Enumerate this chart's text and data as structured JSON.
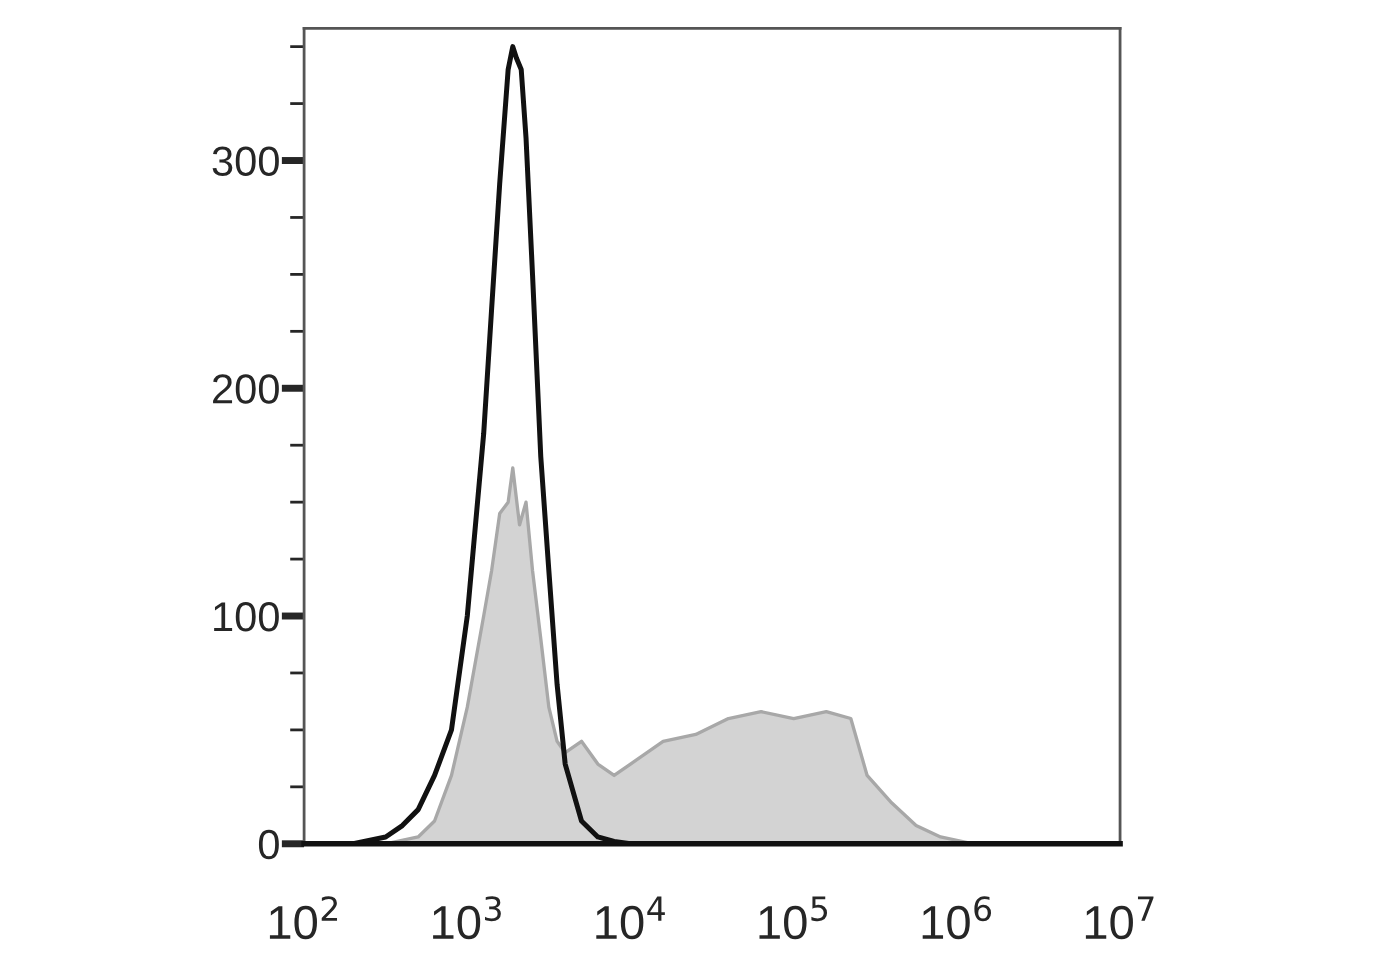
{
  "chart_data": {
    "type": "area",
    "xlim": [
      100,
      10000000
    ],
    "log": "x",
    "xticks": [
      {
        "value": 100,
        "label": "10$^{2}$"
      },
      {
        "value": 1000,
        "label": "10$^{3}$"
      },
      {
        "value": 10000,
        "label": "10$^{4}$"
      },
      {
        "value": 100000,
        "label": "10$^{5}$"
      },
      {
        "value": 1000000,
        "label": "10$^{6}$"
      },
      {
        "value": 10000000,
        "label": "10$^{7}$"
      }
    ],
    "ylim": [
      0,
      358
    ],
    "yticks": [
      0,
      {
        "value": 25,
        "label": null
      },
      {
        "value": 50,
        "label": null
      },
      {
        "value": 75,
        "label": null
      },
      100,
      {
        "value": 125,
        "label": null
      },
      {
        "value": 150,
        "label": null
      },
      {
        "value": 175,
        "label": null
      },
      200,
      {
        "value": 225,
        "label": null
      },
      {
        "value": 250,
        "label": null
      },
      {
        "value": 275,
        "label": null
      },
      300,
      {
        "value": 325,
        "label": null
      },
      {
        "value": 350,
        "label": null
      }
    ],
    "grid": false,
    "legend": false,
    "series": [
      {
        "color": "#d3d3d3",
        "x": [
          100,
          316,
          500,
          630,
          800,
          1000,
          1260,
          1410,
          1580,
          1780,
          1900,
          2090,
          2290,
          2510,
          2820,
          3160,
          3550,
          3980,
          5010,
          6310,
          7940,
          10000,
          15850,
          25120,
          39810,
          63100,
          100000,
          158500,
          223900,
          281800,
          398100,
          562300,
          794300,
          1259000,
          10000000
        ],
        "values": [
          0,
          0,
          3,
          10,
          30,
          60,
          100,
          120,
          145,
          150,
          165,
          140,
          150,
          120,
          90,
          60,
          45,
          40,
          45,
          35,
          30,
          35,
          45,
          48,
          55,
          58,
          55,
          58,
          55,
          30,
          18,
          8,
          3,
          0,
          0
        ]
      },
      {
        "type": "line",
        "color": "#111111",
        "x": [
          100,
          200,
          316,
          400,
          500,
          630,
          800,
          1000,
          1260,
          1410,
          1580,
          1780,
          1900,
          2000,
          2140,
          2290,
          2510,
          2820,
          3160,
          3550,
          3980,
          5010,
          6310,
          7940,
          10000,
          10000000
        ],
        "values": [
          0,
          0,
          3,
          8,
          15,
          30,
          50,
          100,
          180,
          235,
          290,
          340,
          350,
          345,
          340,
          310,
          250,
          170,
          120,
          70,
          35,
          10,
          3,
          1,
          0,
          0
        ]
      }
    ]
  }
}
